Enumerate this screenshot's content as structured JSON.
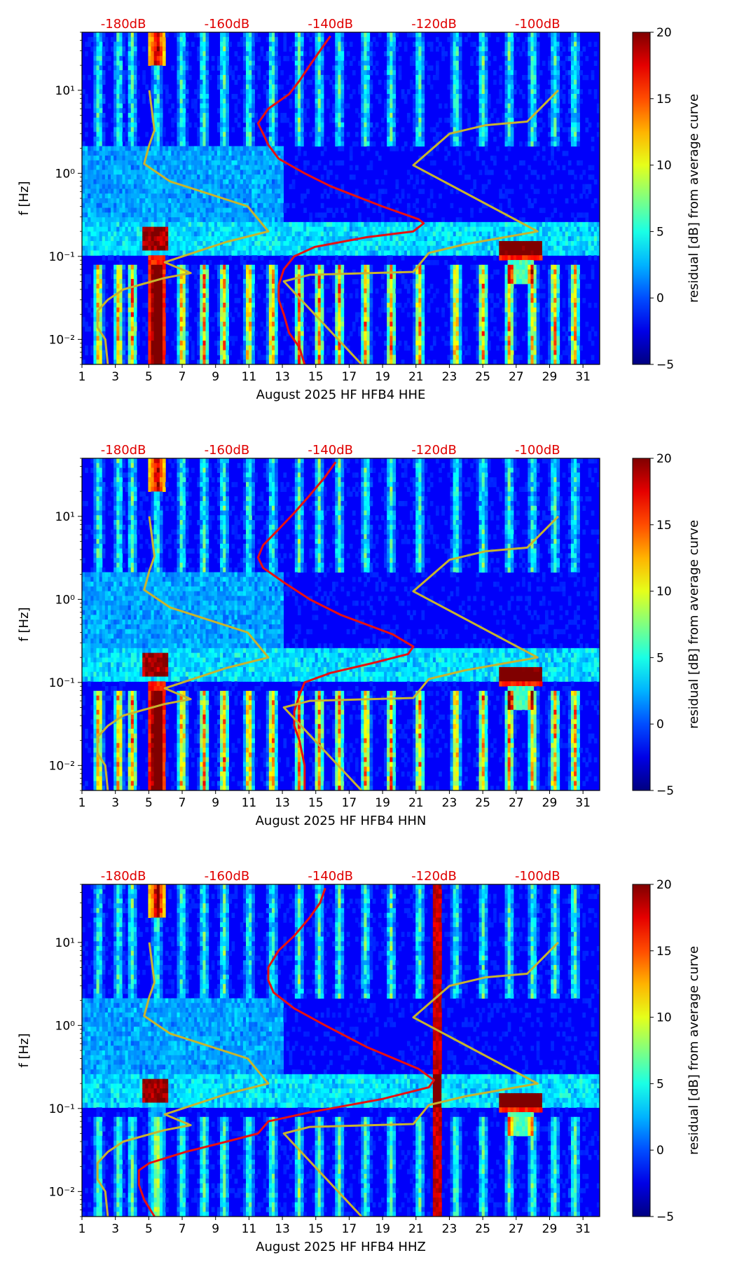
{
  "chart_data": [
    {
      "type": "heatmap",
      "title": "",
      "xlabel": "August 2025 HF HFB4  HHE",
      "ylabel": "f [Hz]",
      "x_ticks": [
        "1",
        "3",
        "5",
        "7",
        "9",
        "11",
        "13",
        "15",
        "17",
        "19",
        "21",
        "23",
        "25",
        "27",
        "29",
        "31"
      ],
      "xlim": [
        1,
        32
      ],
      "ylim": [
        0.005,
        50
      ],
      "y_ticks": [
        "10⁻²",
        "10⁻¹",
        "10⁰",
        "10¹"
      ],
      "top_axis_labels": [
        "-180dB",
        "-160dB",
        "-140dB",
        "-120dB",
        "-100dB"
      ],
      "top_axis_values": [
        -180,
        -160,
        -140,
        -120,
        -100
      ],
      "top_axis_range": [
        -188,
        -88
      ],
      "top_axis_color": "#e00000",
      "colorbar": {
        "label": "residual [dB] from average curve",
        "min": -5,
        "max": 20,
        "ticks": [
          "20",
          "15",
          "10",
          "5",
          "0",
          "−5"
        ]
      },
      "series": [
        {
          "name": "average PSD (red)",
          "color": "#e81010",
          "points": [
            [
              -145,
              0.005
            ],
            [
              -146,
              0.008
            ],
            [
              -148,
              0.012
            ],
            [
              -149,
              0.02
            ],
            [
              -150,
              0.03
            ],
            [
              -150,
              0.045
            ],
            [
              -149,
              0.07
            ],
            [
              -147,
              0.1
            ],
            [
              -143,
              0.13
            ],
            [
              -133,
              0.17
            ],
            [
              -124,
              0.2
            ],
            [
              -122,
              0.25
            ],
            [
              -123,
              0.28
            ],
            [
              -130,
              0.4
            ],
            [
              -140,
              0.7
            ],
            [
              -145,
              1.0
            ],
            [
              -150,
              1.5
            ],
            [
              -152,
              2.2
            ],
            [
              -153,
              3
            ],
            [
              -154,
              4
            ],
            [
              -152,
              6
            ],
            [
              -148,
              9
            ],
            [
              -146,
              13
            ],
            [
              -144,
              20
            ],
            [
              -142,
              30
            ],
            [
              -140,
              45
            ]
          ]
        },
        {
          "name": "NLNM (yellow)",
          "color": "#c8b42e",
          "points": [
            [
              -183,
              0.005
            ],
            [
              -183.5,
              0.01
            ],
            [
              -185,
              0.014
            ],
            [
              -185,
              0.022
            ],
            [
              -183,
              0.03
            ],
            [
              -180,
              0.04
            ],
            [
              -172,
              0.055
            ],
            [
              -167,
              0.063
            ],
            [
              -172,
              0.085
            ],
            [
              -160,
              0.15
            ],
            [
              -152,
              0.2
            ],
            [
              -156,
              0.4
            ],
            [
              -171,
              0.8
            ],
            [
              -176,
              1.3
            ],
            [
              -175,
              2.2
            ],
            [
              -174,
              3.3
            ],
            [
              -175,
              10
            ]
          ]
        },
        {
          "name": "NHNM (yellow)",
          "color": "#c8b42e",
          "points": [
            [
              -134,
              0.005
            ],
            [
              -149,
              0.05
            ],
            [
              -144,
              0.06
            ],
            [
              -124,
              0.065
            ],
            [
              -121,
              0.11
            ],
            [
              -114,
              0.14
            ],
            [
              -100,
              0.2
            ],
            [
              -124,
              1.25
            ],
            [
              -117,
              3
            ],
            [
              -110,
              3.8
            ],
            [
              -102,
              4.2
            ],
            [
              -96,
              10
            ]
          ]
        }
      ]
    },
    {
      "type": "heatmap",
      "title": "",
      "xlabel": "August 2025 HF HFB4  HHN",
      "ylabel": "f [Hz]",
      "x_ticks": [
        "1",
        "3",
        "5",
        "7",
        "9",
        "11",
        "13",
        "15",
        "17",
        "19",
        "21",
        "23",
        "25",
        "27",
        "29",
        "31"
      ],
      "xlim": [
        1,
        32
      ],
      "ylim": [
        0.005,
        50
      ],
      "y_ticks": [
        "10⁻²",
        "10⁻¹",
        "10⁰",
        "10¹"
      ],
      "top_axis_labels": [
        "-180dB",
        "-160dB",
        "-140dB",
        "-120dB",
        "-100dB"
      ],
      "top_axis_values": [
        -180,
        -160,
        -140,
        -120,
        -100
      ],
      "top_axis_range": [
        -188,
        -88
      ],
      "top_axis_color": "#e00000",
      "colorbar": {
        "label": "residual [dB] from average curve",
        "min": -5,
        "max": 20,
        "ticks": [
          "20",
          "15",
          "10",
          "5",
          "0",
          "−5"
        ]
      },
      "series": [
        {
          "name": "average PSD (red)",
          "color": "#e81010",
          "points": [
            [
              -145,
              0.005
            ],
            [
              -145,
              0.01
            ],
            [
              -146,
              0.02
            ],
            [
              -147,
              0.03
            ],
            [
              -147,
              0.045
            ],
            [
              -146,
              0.07
            ],
            [
              -145,
              0.1
            ],
            [
              -140,
              0.13
            ],
            [
              -132,
              0.17
            ],
            [
              -125,
              0.22
            ],
            [
              -124,
              0.27
            ],
            [
              -128,
              0.38
            ],
            [
              -138,
              0.65
            ],
            [
              -144,
              1.0
            ],
            [
              -149,
              1.6
            ],
            [
              -153,
              2.4
            ],
            [
              -154,
              3.2
            ],
            [
              -153,
              4.5
            ],
            [
              -150,
              7
            ],
            [
              -147,
              11
            ],
            [
              -144,
              18
            ],
            [
              -141,
              30
            ],
            [
              -139,
              45
            ]
          ]
        },
        {
          "name": "NLNM (yellow)",
          "color": "#c8b42e",
          "points": [
            [
              -183,
              0.005
            ],
            [
              -183.5,
              0.01
            ],
            [
              -185,
              0.014
            ],
            [
              -185,
              0.022
            ],
            [
              -183,
              0.03
            ],
            [
              -180,
              0.04
            ],
            [
              -172,
              0.055
            ],
            [
              -167,
              0.063
            ],
            [
              -172,
              0.085
            ],
            [
              -160,
              0.15
            ],
            [
              -152,
              0.2
            ],
            [
              -156,
              0.4
            ],
            [
              -171,
              0.8
            ],
            [
              -176,
              1.3
            ],
            [
              -175,
              2.2
            ],
            [
              -174,
              3.3
            ],
            [
              -175,
              10
            ]
          ]
        },
        {
          "name": "NHNM (yellow)",
          "color": "#c8b42e",
          "points": [
            [
              -134,
              0.005
            ],
            [
              -149,
              0.05
            ],
            [
              -144,
              0.06
            ],
            [
              -124,
              0.065
            ],
            [
              -121,
              0.11
            ],
            [
              -114,
              0.14
            ],
            [
              -100,
              0.2
            ],
            [
              -124,
              1.25
            ],
            [
              -117,
              3
            ],
            [
              -110,
              3.8
            ],
            [
              -102,
              4.2
            ],
            [
              -96,
              10
            ]
          ]
        }
      ]
    },
    {
      "type": "heatmap",
      "title": "",
      "xlabel": "August 2025 HF HFB4  HHZ",
      "ylabel": "f [Hz]",
      "x_ticks": [
        "1",
        "3",
        "5",
        "7",
        "9",
        "11",
        "13",
        "15",
        "17",
        "19",
        "21",
        "23",
        "25",
        "27",
        "29",
        "31"
      ],
      "xlim": [
        1,
        32
      ],
      "ylim": [
        0.005,
        50
      ],
      "y_ticks": [
        "10⁻²",
        "10⁻¹",
        "10⁰",
        "10¹"
      ],
      "top_axis_labels": [
        "-180dB",
        "-160dB",
        "-140dB",
        "-120dB",
        "-100dB"
      ],
      "top_axis_values": [
        -180,
        -160,
        -140,
        -120,
        -100
      ],
      "top_axis_range": [
        -188,
        -88
      ],
      "top_axis_color": "#e00000",
      "colorbar": {
        "label": "residual [dB] from average curve",
        "min": -5,
        "max": 20,
        "ticks": [
          "20",
          "15",
          "10",
          "5",
          "0",
          "−5"
        ]
      },
      "series": [
        {
          "name": "average PSD (red)",
          "color": "#e81010",
          "points": [
            [
              -174,
              0.005
            ],
            [
              -176,
              0.008
            ],
            [
              -177,
              0.012
            ],
            [
              -177,
              0.018
            ],
            [
              -175,
              0.022
            ],
            [
              -168,
              0.03
            ],
            [
              -160,
              0.04
            ],
            [
              -154,
              0.05
            ],
            [
              -152,
              0.07
            ],
            [
              -144,
              0.09
            ],
            [
              -130,
              0.13
            ],
            [
              -121,
              0.18
            ],
            [
              -120,
              0.22
            ],
            [
              -123,
              0.3
            ],
            [
              -133,
              0.55
            ],
            [
              -141,
              1.0
            ],
            [
              -147,
              1.6
            ],
            [
              -151,
              2.5
            ],
            [
              -152,
              3.5
            ],
            [
              -152,
              5
            ],
            [
              -150,
              8
            ],
            [
              -147,
              12
            ],
            [
              -144,
              20
            ],
            [
              -142,
              30
            ],
            [
              -141,
              45
            ]
          ]
        },
        {
          "name": "NLNM (yellow)",
          "color": "#c8b42e",
          "points": [
            [
              -183,
              0.005
            ],
            [
              -183.5,
              0.01
            ],
            [
              -185,
              0.014
            ],
            [
              -185,
              0.022
            ],
            [
              -183,
              0.03
            ],
            [
              -180,
              0.04
            ],
            [
              -172,
              0.055
            ],
            [
              -167,
              0.063
            ],
            [
              -172,
              0.085
            ],
            [
              -160,
              0.15
            ],
            [
              -152,
              0.2
            ],
            [
              -156,
              0.4
            ],
            [
              -171,
              0.8
            ],
            [
              -176,
              1.3
            ],
            [
              -175,
              2.2
            ],
            [
              -174,
              3.3
            ],
            [
              -175,
              10
            ]
          ]
        },
        {
          "name": "NHNM (yellow)",
          "color": "#c8b42e",
          "points": [
            [
              -134,
              0.005
            ],
            [
              -149,
              0.05
            ],
            [
              -144,
              0.06
            ],
            [
              -124,
              0.065
            ],
            [
              -121,
              0.11
            ],
            [
              -114,
              0.14
            ],
            [
              -100,
              0.2
            ],
            [
              -124,
              1.25
            ],
            [
              -117,
              3
            ],
            [
              -110,
              3.8
            ],
            [
              -102,
              4.2
            ],
            [
              -96,
              10
            ]
          ]
        }
      ]
    }
  ]
}
